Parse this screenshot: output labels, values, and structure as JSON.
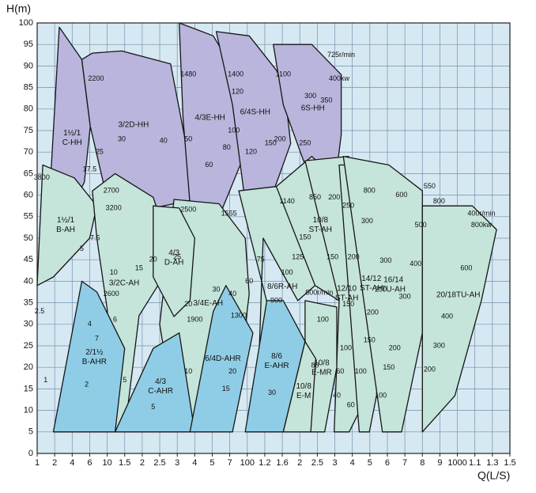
{
  "chart_data": {
    "type": "region",
    "x_label": "Q(L/S)",
    "y_label": "H(m)",
    "ylim": [
      0,
      100
    ],
    "yticks": [
      0,
      5,
      10,
      15,
      20,
      25,
      30,
      35,
      40,
      45,
      50,
      55,
      60,
      65,
      70,
      75,
      80,
      85,
      90,
      95,
      100
    ],
    "xticks": [
      1,
      2,
      4,
      6,
      10,
      {
        "value": 15,
        "label": "1.5"
      },
      {
        "value": 20,
        "label": "2"
      },
      {
        "value": 25,
        "label": "2.5"
      },
      {
        "value": 30,
        "label": "3"
      },
      {
        "value": 40,
        "label": "4"
      },
      {
        "value": 50,
        "label": "5"
      },
      {
        "value": 70,
        "label": "7"
      },
      100,
      {
        "value": 120,
        "label": "1.2"
      },
      {
        "value": 160,
        "label": "1.6"
      },
      {
        "value": 200,
        "label": "2"
      },
      {
        "value": 250,
        "label": "2.5"
      },
      {
        "value": 300,
        "label": "3"
      },
      {
        "value": 400,
        "label": "4"
      },
      {
        "value": 500,
        "label": "5"
      },
      {
        "value": 600,
        "label": "6"
      },
      {
        "value": 700,
        "label": "7"
      },
      {
        "value": 800,
        "label": "8"
      },
      {
        "value": 900,
        "label": "9"
      },
      1000,
      {
        "value": 1100,
        "label": "1.1"
      },
      {
        "value": 1300,
        "label": "1.3"
      },
      {
        "value": 1500,
        "label": "1.5"
      }
    ],
    "grid": true,
    "regions": [
      {
        "label": [
          "1½/1",
          "C-HH"
        ],
        "color": "#b9b5dc",
        "x": [
          1.55,
          2.4,
          5,
          6.1,
          5.3,
          3.5
        ],
        "y": [
          54,
          99,
          91.5,
          76,
          63,
          56
        ]
      },
      {
        "label": [
          "3/2D-HH"
        ],
        "color": "#b9b5dc",
        "x": [
          5,
          6.5,
          14,
          28,
          37,
          40,
          23,
          10,
          6.1
        ],
        "y": [
          91.5,
          93,
          93.5,
          90.5,
          67,
          59,
          57,
          59,
          76
        ]
      },
      {
        "label": [
          "4/3E-HH"
        ],
        "color": "#b9b5dc",
        "x": [
          31,
          51,
          84,
          93,
          61,
          37,
          33
        ],
        "y": [
          100,
          97,
          87,
          69,
          57,
          58,
          78
        ]
      },
      {
        "label": [
          "6/4S-HH"
        ],
        "color": "#b9b5dc",
        "x": [
          54,
          102,
          162,
          178,
          132,
          93,
          74
        ],
        "y": [
          98,
          97,
          87,
          72,
          59,
          61,
          81
        ]
      },
      {
        "label": [
          "6S-HH"
        ],
        "color": "#b9b5dc",
        "x": [
          138,
          233,
          333,
          333,
          298,
          214,
          162
        ],
        "y": [
          95,
          95,
          88,
          74,
          61,
          67,
          81
        ]
      },
      {
        "label": [
          "1½/1",
          "B-AH"
        ],
        "color": "#c5e4da",
        "x": [
          1,
          1.25,
          4.2,
          7.4,
          6,
          1.9
        ],
        "y": [
          39,
          67,
          64,
          57.5,
          50,
          41
        ]
      },
      {
        "label": [
          "3/2C-AH"
        ],
        "color": "#c5e4da",
        "x": [
          6.5,
          12,
          23,
          29,
          19,
          15,
          12,
          10,
          7.4
        ],
        "y": [
          61,
          65,
          59.5,
          45,
          32,
          5,
          5,
          33.5,
          50
        ]
      },
      {
        "label": [
          "3/4E-AH"
        ],
        "color": "#c5e4da",
        "x": [
          29,
          57,
          96,
          102,
          74,
          30,
          25
        ],
        "y": [
          59,
          58,
          50,
          37,
          5,
          5,
          30
        ]
      },
      {
        "label": [
          "4/3",
          "D-AH"
        ],
        "color": "#c5e4da",
        "x": [
          23,
          31,
          40,
          37,
          29,
          23
        ],
        "y": [
          57.5,
          57,
          50,
          35.5,
          31.8,
          41
        ]
      },
      {
        "label": [
          "8/6R-AH"
        ],
        "color": "#c5e4da",
        "x": [
          84,
          145,
          233,
          243,
          195,
          118,
          110,
          200
        ],
        "y": [
          61,
          62,
          52,
          39,
          35.5,
          50,
          5,
          5
        ]
      },
      {
        "label": [
          "10/8",
          "ST-AH"
        ],
        "color": "#c5e4da",
        "x": [
          145,
          233,
          322,
          333,
          322,
          243
        ],
        "y": [
          62,
          69,
          63,
          50,
          35.5,
          39
        ]
      },
      {
        "label": [
          "12/10",
          "ST-AH"
        ],
        "color": "#c5e4da",
        "x": [
          214,
          375,
          497,
          497,
          437,
          380,
          298,
          322
        ],
        "y": [
          68,
          69,
          61,
          44,
          9.7,
          5,
          5,
          35.5
        ]
      },
      {
        "label": [
          "14/12",
          "ST-AH"
        ],
        "color": "#c5e4da",
        "x": [
          322,
          515,
          645,
          627,
          497,
          437
        ],
        "y": [
          67,
          67,
          61,
          32,
          5,
          5
        ]
      },
      {
        "label": [
          "16/14",
          "TU-AH"
        ],
        "color": "#c5e4da",
        "x": [
          345,
          608,
          800,
          800,
          680,
          570
        ],
        "y": [
          69,
          67,
          61,
          28,
          5,
          5
        ]
      },
      {
        "label": [
          "20/18TU-AH"
        ],
        "color": "#c5e4da",
        "x": [
          800,
          1085,
          1345,
          1170,
          985,
          800
        ],
        "y": [
          57.5,
          57.5,
          52,
          35.5,
          13.4,
          5
        ]
      },
      {
        "label": [
          "2/1½",
          "B-AHR"
        ],
        "color": "#8fcde6",
        "x": [
          1.9,
          5,
          7.4,
          15,
          12
        ],
        "y": [
          5,
          40,
          37.5,
          24.4,
          5
        ]
      },
      {
        "label": [
          "4/3",
          "C-AHR"
        ],
        "color": "#8fcde6",
        "x": [
          12,
          23,
          31,
          40
        ],
        "y": [
          5,
          24.4,
          28,
          5
        ]
      },
      {
        "label": [
          "6/4D-AHR"
        ],
        "color": "#8fcde6",
        "x": [
          37,
          51,
          65,
          106,
          74
        ],
        "y": [
          5,
          33,
          39,
          28,
          5
        ]
      },
      {
        "label": [
          "8/6",
          "E-AHR"
        ],
        "color": "#8fcde6",
        "x": [
          96,
          124,
          162,
          214,
          162
        ],
        "y": [
          5,
          35.5,
          35.5,
          26,
          5
        ]
      },
      {
        "label": [
          "10/8",
          "E-MR"
        ],
        "color": "#c5e4da",
        "x": [
          214,
          310,
          310,
          270,
          214
        ],
        "y": [
          35.5,
          34,
          20,
          5,
          5
        ]
      },
      {
        "label": [
          "10/8",
          "E-M"
        ],
        "color": "#c5e4da",
        "x": [
          162,
          214,
          245,
          230
        ],
        "y": [
          5,
          26,
          22,
          5
        ]
      }
    ],
    "annotations": [
      {
        "text": "2200",
        "x": 7.2,
        "y": 87
      },
      {
        "text": "30",
        "x": 14,
        "y": 73
      },
      {
        "text": "25",
        "x": 8,
        "y": 70
      },
      {
        "text": "17.5",
        "x": 6,
        "y": 66
      },
      {
        "text": "40",
        "x": 26,
        "y": 72.6
      },
      {
        "text": "50",
        "x": 36,
        "y": 73
      },
      {
        "text": "60",
        "x": 48,
        "y": 67
      },
      {
        "text": "1480",
        "x": 36,
        "y": 88
      },
      {
        "text": "1400",
        "x": 79,
        "y": 88
      },
      {
        "text": "120",
        "x": 82,
        "y": 84
      },
      {
        "text": "100",
        "x": 76,
        "y": 75
      },
      {
        "text": "80",
        "x": 66,
        "y": 71
      },
      {
        "text": "1100",
        "x": 162,
        "y": 88
      },
      {
        "text": "300",
        "x": 229,
        "y": 83
      },
      {
        "text": "350",
        "x": 275,
        "y": 82
      },
      {
        "text": "200",
        "x": 154,
        "y": 73
      },
      {
        "text": "150",
        "x": 132,
        "y": 72
      },
      {
        "text": "120",
        "x": 104,
        "y": 70
      },
      {
        "text": "250",
        "x": 214,
        "y": 72
      },
      {
        "text": "725r/min",
        "x": 333,
        "y": 92.5
      },
      {
        "text": "400kw",
        "x": 322,
        "y": 87
      },
      {
        "text": "3800",
        "x": 1.2,
        "y": 64
      },
      {
        "text": "2700",
        "x": 11,
        "y": 61
      },
      {
        "text": "3200",
        "x": 11.6,
        "y": 57
      },
      {
        "text": "7.5",
        "x": 7,
        "y": 50
      },
      {
        "text": "5",
        "x": 5,
        "y": 47.5
      },
      {
        "text": "2.5",
        "x": 1.1,
        "y": 33
      },
      {
        "text": "1",
        "x": 1.4,
        "y": 17
      },
      {
        "text": "2",
        "x": 5.6,
        "y": 16
      },
      {
        "text": "4",
        "x": 6,
        "y": 30
      },
      {
        "text": "7",
        "x": 7.4,
        "y": 26.6
      },
      {
        "text": "6",
        "x": 12,
        "y": 31
      },
      {
        "text": "2600",
        "x": 11,
        "y": 37
      },
      {
        "text": "10",
        "x": 11.6,
        "y": 42
      },
      {
        "text": "15",
        "x": 19,
        "y": 43
      },
      {
        "text": "20",
        "x": 23,
        "y": 45
      },
      {
        "text": "25",
        "x": 30,
        "y": 45.6
      },
      {
        "text": "2500",
        "x": 36,
        "y": 56.6
      },
      {
        "text": "1555",
        "x": 69,
        "y": 55.7
      },
      {
        "text": "30",
        "x": 54,
        "y": 38
      },
      {
        "text": "40",
        "x": 74,
        "y": 37
      },
      {
        "text": "60",
        "x": 102,
        "y": 40
      },
      {
        "text": "75",
        "x": 115,
        "y": 45
      },
      {
        "text": "20",
        "x": 36,
        "y": 34.6
      },
      {
        "text": "1900",
        "x": 40,
        "y": 31
      },
      {
        "text": "1300",
        "x": 84,
        "y": 32
      },
      {
        "text": "900",
        "x": 145,
        "y": 35.5
      },
      {
        "text": "10",
        "x": 36,
        "y": 19
      },
      {
        "text": "15",
        "x": 65,
        "y": 15
      },
      {
        "text": "20",
        "x": 74,
        "y": 19
      },
      {
        "text": "30",
        "x": 135,
        "y": 14
      },
      {
        "text": "5",
        "x": 15,
        "y": 17
      },
      {
        "text": "5",
        "x": 23,
        "y": 10.7
      },
      {
        "text": "1140",
        "x": 170,
        "y": 58.5
      },
      {
        "text": "850",
        "x": 243,
        "y": 59.4
      },
      {
        "text": "150",
        "x": 214,
        "y": 50.2
      },
      {
        "text": "125",
        "x": 195,
        "y": 45.6
      },
      {
        "text": "100",
        "x": 170,
        "y": 42
      },
      {
        "text": "200",
        "x": 298,
        "y": 59.4
      },
      {
        "text": "250",
        "x": 375,
        "y": 57.5
      },
      {
        "text": "300",
        "x": 483,
        "y": 53.9
      },
      {
        "text": "800",
        "x": 497,
        "y": 61
      },
      {
        "text": "600",
        "x": 680,
        "y": 60
      },
      {
        "text": "550",
        "x": 840,
        "y": 62
      },
      {
        "text": "500",
        "x": 790,
        "y": 53
      },
      {
        "text": "800",
        "x": 895,
        "y": 58.5
      },
      {
        "text": "400r/min",
        "x": 1170,
        "y": 55.7
      },
      {
        "text": "800kw",
        "x": 1170,
        "y": 53
      },
      {
        "text": "600",
        "x": 1050,
        "y": 43
      },
      {
        "text": "400",
        "x": 940,
        "y": 31.8
      },
      {
        "text": "300",
        "x": 895,
        "y": 25
      },
      {
        "text": "200",
        "x": 840,
        "y": 19.5
      },
      {
        "text": "200",
        "x": 406,
        "y": 45.6
      },
      {
        "text": "150",
        "x": 293,
        "y": 45.6
      },
      {
        "text": "300",
        "x": 590,
        "y": 44.7
      },
      {
        "text": "250",
        "x": 560,
        "y": 38
      },
      {
        "text": "400",
        "x": 760,
        "y": 44
      },
      {
        "text": "200",
        "x": 515,
        "y": 32.7
      },
      {
        "text": "150",
        "x": 375,
        "y": 34.6
      },
      {
        "text": "300",
        "x": 700,
        "y": 36.4
      },
      {
        "text": "200",
        "x": 640,
        "y": 24.4
      },
      {
        "text": "150",
        "x": 608,
        "y": 19.9
      },
      {
        "text": "100",
        "x": 560,
        "y": 13.4
      },
      {
        "text": "100",
        "x": 360,
        "y": 24.4
      },
      {
        "text": "150",
        "x": 497,
        "y": 26.3
      },
      {
        "text": "100",
        "x": 445,
        "y": 19
      },
      {
        "text": "60",
        "x": 390,
        "y": 11.2
      },
      {
        "text": "40",
        "x": 310,
        "y": 13.4
      },
      {
        "text": "60",
        "x": 328,
        "y": 19
      },
      {
        "text": "100",
        "x": 265,
        "y": 31
      },
      {
        "text": "80",
        "x": 243,
        "y": 20.4
      },
      {
        "text": "800r/min",
        "x": 255,
        "y": 37.3
      }
    ]
  }
}
